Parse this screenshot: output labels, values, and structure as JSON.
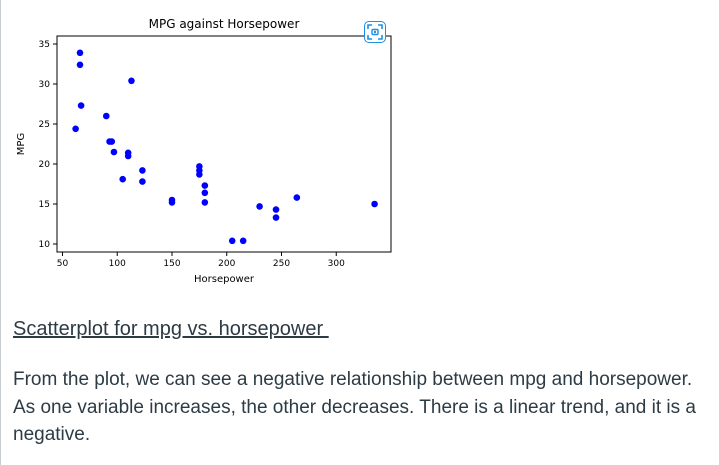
{
  "chart_data": {
    "type": "scatter",
    "title": "MPG against Horsepower",
    "xlabel": "Horsepower",
    "ylabel": "MPG",
    "xlim": [
      45,
      350
    ],
    "ylim": [
      9,
      36
    ],
    "xticks": [
      50,
      100,
      150,
      200,
      250,
      300
    ],
    "yticks": [
      10,
      15,
      20,
      25,
      30,
      35
    ],
    "grid": false,
    "point_color": "#0000ff",
    "points": [
      {
        "x": 62,
        "y": 24.4
      },
      {
        "x": 66,
        "y": 33.9
      },
      {
        "x": 66,
        "y": 32.4
      },
      {
        "x": 67,
        "y": 27.3
      },
      {
        "x": 90,
        "y": 26.0
      },
      {
        "x": 93,
        "y": 22.8
      },
      {
        "x": 95,
        "y": 22.8
      },
      {
        "x": 97,
        "y": 21.5
      },
      {
        "x": 105,
        "y": 18.1
      },
      {
        "x": 110,
        "y": 21.4
      },
      {
        "x": 110,
        "y": 21.0
      },
      {
        "x": 113,
        "y": 30.4
      },
      {
        "x": 123,
        "y": 19.2
      },
      {
        "x": 123,
        "y": 17.8
      },
      {
        "x": 150,
        "y": 15.5
      },
      {
        "x": 150,
        "y": 15.2
      },
      {
        "x": 175,
        "y": 19.7
      },
      {
        "x": 175,
        "y": 19.2
      },
      {
        "x": 175,
        "y": 18.7
      },
      {
        "x": 180,
        "y": 17.3
      },
      {
        "x": 180,
        "y": 16.4
      },
      {
        "x": 180,
        "y": 15.2
      },
      {
        "x": 205,
        "y": 10.4
      },
      {
        "x": 215,
        "y": 10.4
      },
      {
        "x": 230,
        "y": 14.7
      },
      {
        "x": 245,
        "y": 14.3
      },
      {
        "x": 245,
        "y": 13.3
      },
      {
        "x": 264,
        "y": 15.8
      },
      {
        "x": 335,
        "y": 15.0
      }
    ]
  },
  "fullscreen": {
    "icon": "fullscreen-focus-icon"
  },
  "caption": "Scatterplot for mpg vs. horsepower ",
  "body_text": "From the plot, we can see a negative relationship between mpg and horsepower. As one variable increases, the other decreases. There is a linear trend, and it is a negative."
}
